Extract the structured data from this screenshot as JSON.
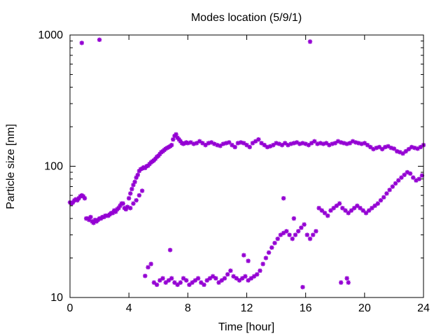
{
  "chart_data": {
    "type": "scatter",
    "title": "Modes location (5/9/1)",
    "xlabel": "Time [hour]",
    "ylabel": "Particle size [nm]",
    "xlim": [
      0,
      24
    ],
    "ylim": [
      10,
      1000
    ],
    "yscale": "log",
    "grid": false,
    "legend": "none",
    "marker_color": "#9400d3",
    "xticks": [
      0,
      4,
      8,
      12,
      16,
      20,
      24
    ],
    "xtick_labels": [
      "0",
      "4",
      "8",
      "12",
      "16",
      "20",
      "24"
    ],
    "yticks": [
      10,
      100,
      1000
    ],
    "ytick_labels": [
      "10",
      "100",
      "1000"
    ],
    "series": [
      {
        "values_desc": "main mode",
        "x": [
          0.0,
          0.1,
          0.2,
          0.3,
          0.4,
          0.5,
          0.6,
          0.7,
          0.8,
          0.9,
          1.0,
          1.1,
          1.2,
          1.3,
          1.4,
          1.5,
          1.6,
          1.7,
          1.8,
          1.9,
          2.0,
          2.1,
          2.2,
          2.3,
          2.4,
          2.5,
          2.6,
          2.7,
          2.8,
          2.9,
          3.0,
          3.1,
          3.2,
          3.3,
          3.4,
          3.5,
          3.6,
          3.7,
          3.8,
          3.9,
          4.0,
          4.1,
          4.2,
          4.3,
          4.4,
          4.5,
          4.6,
          4.7,
          4.8,
          4.9,
          5.0,
          5.1,
          5.2,
          5.3,
          5.4,
          5.5,
          5.6,
          5.7,
          5.8,
          5.9,
          6.0,
          6.1,
          6.2,
          6.3,
          6.4,
          6.5,
          6.6,
          6.7,
          6.8,
          6.9,
          7.0,
          7.1,
          7.2,
          7.3,
          7.4,
          7.5,
          7.6,
          7.7,
          7.8,
          7.9,
          8.0,
          8.2,
          8.4,
          8.6,
          8.8,
          9.0,
          9.2,
          9.4,
          9.6,
          9.8,
          10.0,
          10.2,
          10.4,
          10.6,
          10.8,
          11.0,
          11.2,
          11.4,
          11.6,
          11.8,
          12.0,
          12.2,
          12.4,
          12.6,
          12.8,
          13.0,
          13.2,
          13.4,
          13.6,
          13.8,
          14.0,
          14.2,
          14.4,
          14.6,
          14.8,
          15.0,
          15.2,
          15.4,
          15.6,
          15.8,
          16.0,
          16.2,
          16.4,
          16.6,
          16.8,
          17.0,
          17.2,
          17.4,
          17.6,
          17.8,
          18.0,
          18.2,
          18.4,
          18.6,
          18.8,
          19.0,
          19.2,
          19.4,
          19.6,
          19.8,
          20.0,
          20.2,
          20.4,
          20.6,
          20.8,
          21.0,
          21.2,
          21.4,
          21.6,
          21.8,
          22.0,
          22.2,
          22.4,
          22.6,
          22.8,
          23.0,
          23.2,
          23.4,
          23.6,
          23.8,
          24.0
        ],
        "y": [
          53,
          52,
          53,
          55,
          56,
          55,
          57,
          59,
          60,
          59,
          57,
          40,
          40,
          39,
          41,
          38,
          37,
          39,
          38,
          39,
          40,
          40,
          41,
          41,
          42,
          42,
          42,
          43,
          44,
          44,
          46,
          45,
          47,
          48,
          50,
          52,
          52,
          48,
          47,
          49,
          57,
          62,
          67,
          72,
          76,
          82,
          86,
          92,
          95,
          96,
          98,
          97,
          100,
          101,
          104,
          107,
          109,
          111,
          114,
          118,
          120,
          124,
          128,
          130,
          133,
          136,
          138,
          140,
          142,
          145,
          160,
          170,
          175,
          165,
          160,
          155,
          150,
          148,
          150,
          152,
          150,
          152,
          148,
          150,
          155,
          150,
          145,
          150,
          152,
          148,
          145,
          143,
          148,
          150,
          152,
          145,
          140,
          150,
          152,
          150,
          145,
          140,
          150,
          155,
          160,
          150,
          145,
          140,
          142,
          145,
          150,
          148,
          145,
          150,
          145,
          148,
          150,
          152,
          148,
          150,
          148,
          145,
          150,
          155,
          148,
          150,
          148,
          150,
          145,
          148,
          150,
          155,
          152,
          150,
          148,
          150,
          155,
          152,
          150,
          148,
          150,
          145,
          140,
          135,
          138,
          140,
          135,
          140,
          142,
          138,
          136,
          130,
          128,
          125,
          130,
          135,
          140,
          138,
          136,
          140,
          145
        ]
      },
      {
        "values_desc": "secondary mode",
        "x": [
          4.1,
          4.3,
          4.5,
          4.7,
          4.9,
          5.1,
          5.3,
          5.5,
          5.7,
          5.9,
          6.1,
          6.3,
          6.5,
          6.7,
          6.9,
          7.1,
          7.3,
          7.5,
          7.7,
          7.9,
          8.1,
          8.3,
          8.5,
          8.7,
          8.9,
          9.1,
          9.3,
          9.5,
          9.7,
          9.9,
          10.1,
          10.3,
          10.5,
          10.7,
          10.9,
          11.1,
          11.3,
          11.5,
          11.7,
          11.9,
          12.1,
          12.3,
          12.5,
          12.7,
          12.9,
          13.1,
          13.3,
          13.5,
          13.7,
          13.9,
          14.1,
          14.3,
          14.5,
          14.7,
          14.9,
          15.1,
          15.3,
          15.5,
          15.7,
          15.9,
          16.1,
          16.3,
          16.5,
          16.7,
          16.9,
          17.1,
          17.3,
          17.5,
          17.7,
          17.9,
          18.1,
          18.3,
          18.5,
          18.7,
          18.9,
          19.1,
          19.3,
          19.5,
          19.7,
          19.9,
          20.1,
          20.3,
          20.5,
          20.7,
          20.9,
          21.1,
          21.3,
          21.5,
          21.7,
          21.9,
          22.1,
          22.3,
          22.5,
          22.7,
          22.9,
          23.1,
          23.3,
          23.5,
          23.7,
          23.9
        ],
        "y": [
          48,
          52,
          55,
          60,
          65,
          14.6,
          17,
          18,
          13,
          12.5,
          13.5,
          14,
          13,
          13.5,
          14,
          13,
          12.5,
          13,
          14,
          13.5,
          12.5,
          13,
          13.5,
          14,
          13,
          12.5,
          13.5,
          14,
          14.5,
          14,
          13,
          13.5,
          14,
          15,
          16,
          14.5,
          14,
          13.5,
          14,
          14.5,
          13.5,
          14,
          14.5,
          15,
          16,
          18,
          20,
          22,
          24,
          26,
          28,
          30,
          31,
          32,
          30,
          28,
          30,
          32,
          34,
          36,
          30,
          28,
          30,
          32,
          48,
          46,
          44,
          42,
          46,
          48,
          50,
          52,
          48,
          46,
          44,
          46,
          48,
          50,
          48,
          46,
          44,
          46,
          48,
          50,
          52,
          55,
          58,
          62,
          66,
          70,
          74,
          78,
          82,
          86,
          90,
          88,
          82,
          78,
          80,
          85
        ]
      },
      {
        "values_desc": "outliers",
        "x": [
          0.8,
          2.0,
          16.3,
          6.8,
          11.8,
          12.1,
          14.5,
          15.2,
          15.8,
          18.4,
          18.8,
          18.9
        ],
        "y": [
          870,
          920,
          890,
          23,
          21,
          19,
          57,
          40,
          12,
          13,
          14,
          13
        ]
      }
    ]
  }
}
